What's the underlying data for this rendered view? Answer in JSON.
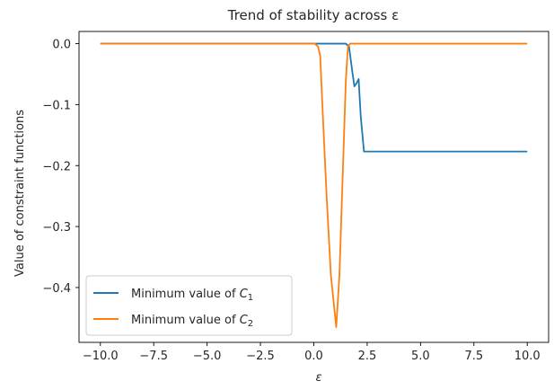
{
  "chart_data": {
    "type": "line",
    "title": "Trend of stability across ε",
    "xlabel": "ε",
    "ylabel": "Value of constraint functions",
    "xlim": [
      -11.0,
      11.0
    ],
    "ylim": [
      -0.49,
      0.02
    ],
    "xticks": [
      -10.0,
      -7.5,
      -5.0,
      -2.5,
      0.0,
      2.5,
      5.0,
      7.5,
      10.0
    ],
    "xtick_labels": [
      "−10.0",
      "−7.5",
      "−5.0",
      "−2.5",
      "0.0",
      "2.5",
      "5.0",
      "7.5",
      "10.0"
    ],
    "yticks": [
      0.0,
      -0.1,
      -0.2,
      -0.3,
      -0.4
    ],
    "ytick_labels": [
      "0.0",
      "−0.1",
      "−0.2",
      "−0.3",
      "−0.4"
    ],
    "grid": false,
    "legend_position": "lower-left",
    "series": [
      {
        "name": "Minimum value of C1",
        "legend_main": "Minimum value of ",
        "legend_var": "C",
        "legend_sub": "1",
        "color": "#1f77b4",
        "points": [
          [
            -10.0,
            0.0
          ],
          [
            1.5,
            0.0
          ],
          [
            1.65,
            -0.005
          ],
          [
            1.8,
            -0.045
          ],
          [
            1.9,
            -0.07
          ],
          [
            2.0,
            -0.065
          ],
          [
            2.1,
            -0.058
          ],
          [
            2.2,
            -0.12
          ],
          [
            2.35,
            -0.177
          ],
          [
            10.0,
            -0.177
          ]
        ]
      },
      {
        "name": "Minimum value of C2",
        "legend_main": "Minimum value of ",
        "legend_var": "C",
        "legend_sub": "2",
        "color": "#ff7f0e",
        "points": [
          [
            -10.0,
            0.0
          ],
          [
            0.05,
            0.0
          ],
          [
            0.2,
            -0.005
          ],
          [
            0.3,
            -0.02
          ],
          [
            0.4,
            -0.1
          ],
          [
            0.6,
            -0.25
          ],
          [
            0.8,
            -0.38
          ],
          [
            1.05,
            -0.465
          ],
          [
            1.2,
            -0.38
          ],
          [
            1.35,
            -0.22
          ],
          [
            1.5,
            -0.06
          ],
          [
            1.6,
            -0.005
          ],
          [
            1.7,
            0.0
          ],
          [
            10.0,
            0.0
          ]
        ]
      }
    ]
  }
}
